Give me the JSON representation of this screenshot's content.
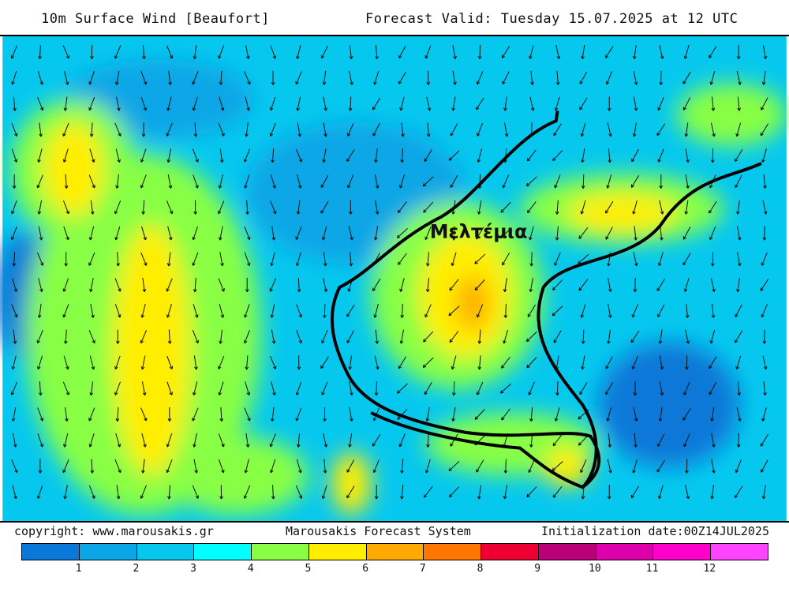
{
  "header": {
    "title": "10m Surface Wind [Beaufort]",
    "valid": "Forecast Valid:  Tuesday 15.07.2025 at 12 UTC"
  },
  "map": {
    "annotation": "Μελτέμια"
  },
  "footer": {
    "copyright": "copyright: www.marousakis.gr",
    "system": "Marousakis Forecast System",
    "init": "Initialization date:00Z14JUL2025"
  },
  "legend": {
    "colors": [
      "#0a78d8",
      "#0aa6e6",
      "#06c8ef",
      "#00ffff",
      "#88ff44",
      "#ffee00",
      "#ffaa00",
      "#ff7700",
      "#ee0033",
      "#bb0077",
      "#dd00aa",
      "#ff00cc",
      "#ff44ff"
    ],
    "labels": [
      "1",
      "2",
      "3",
      "4",
      "5",
      "6",
      "7",
      "8",
      "9",
      "10",
      "11",
      "12"
    ]
  }
}
